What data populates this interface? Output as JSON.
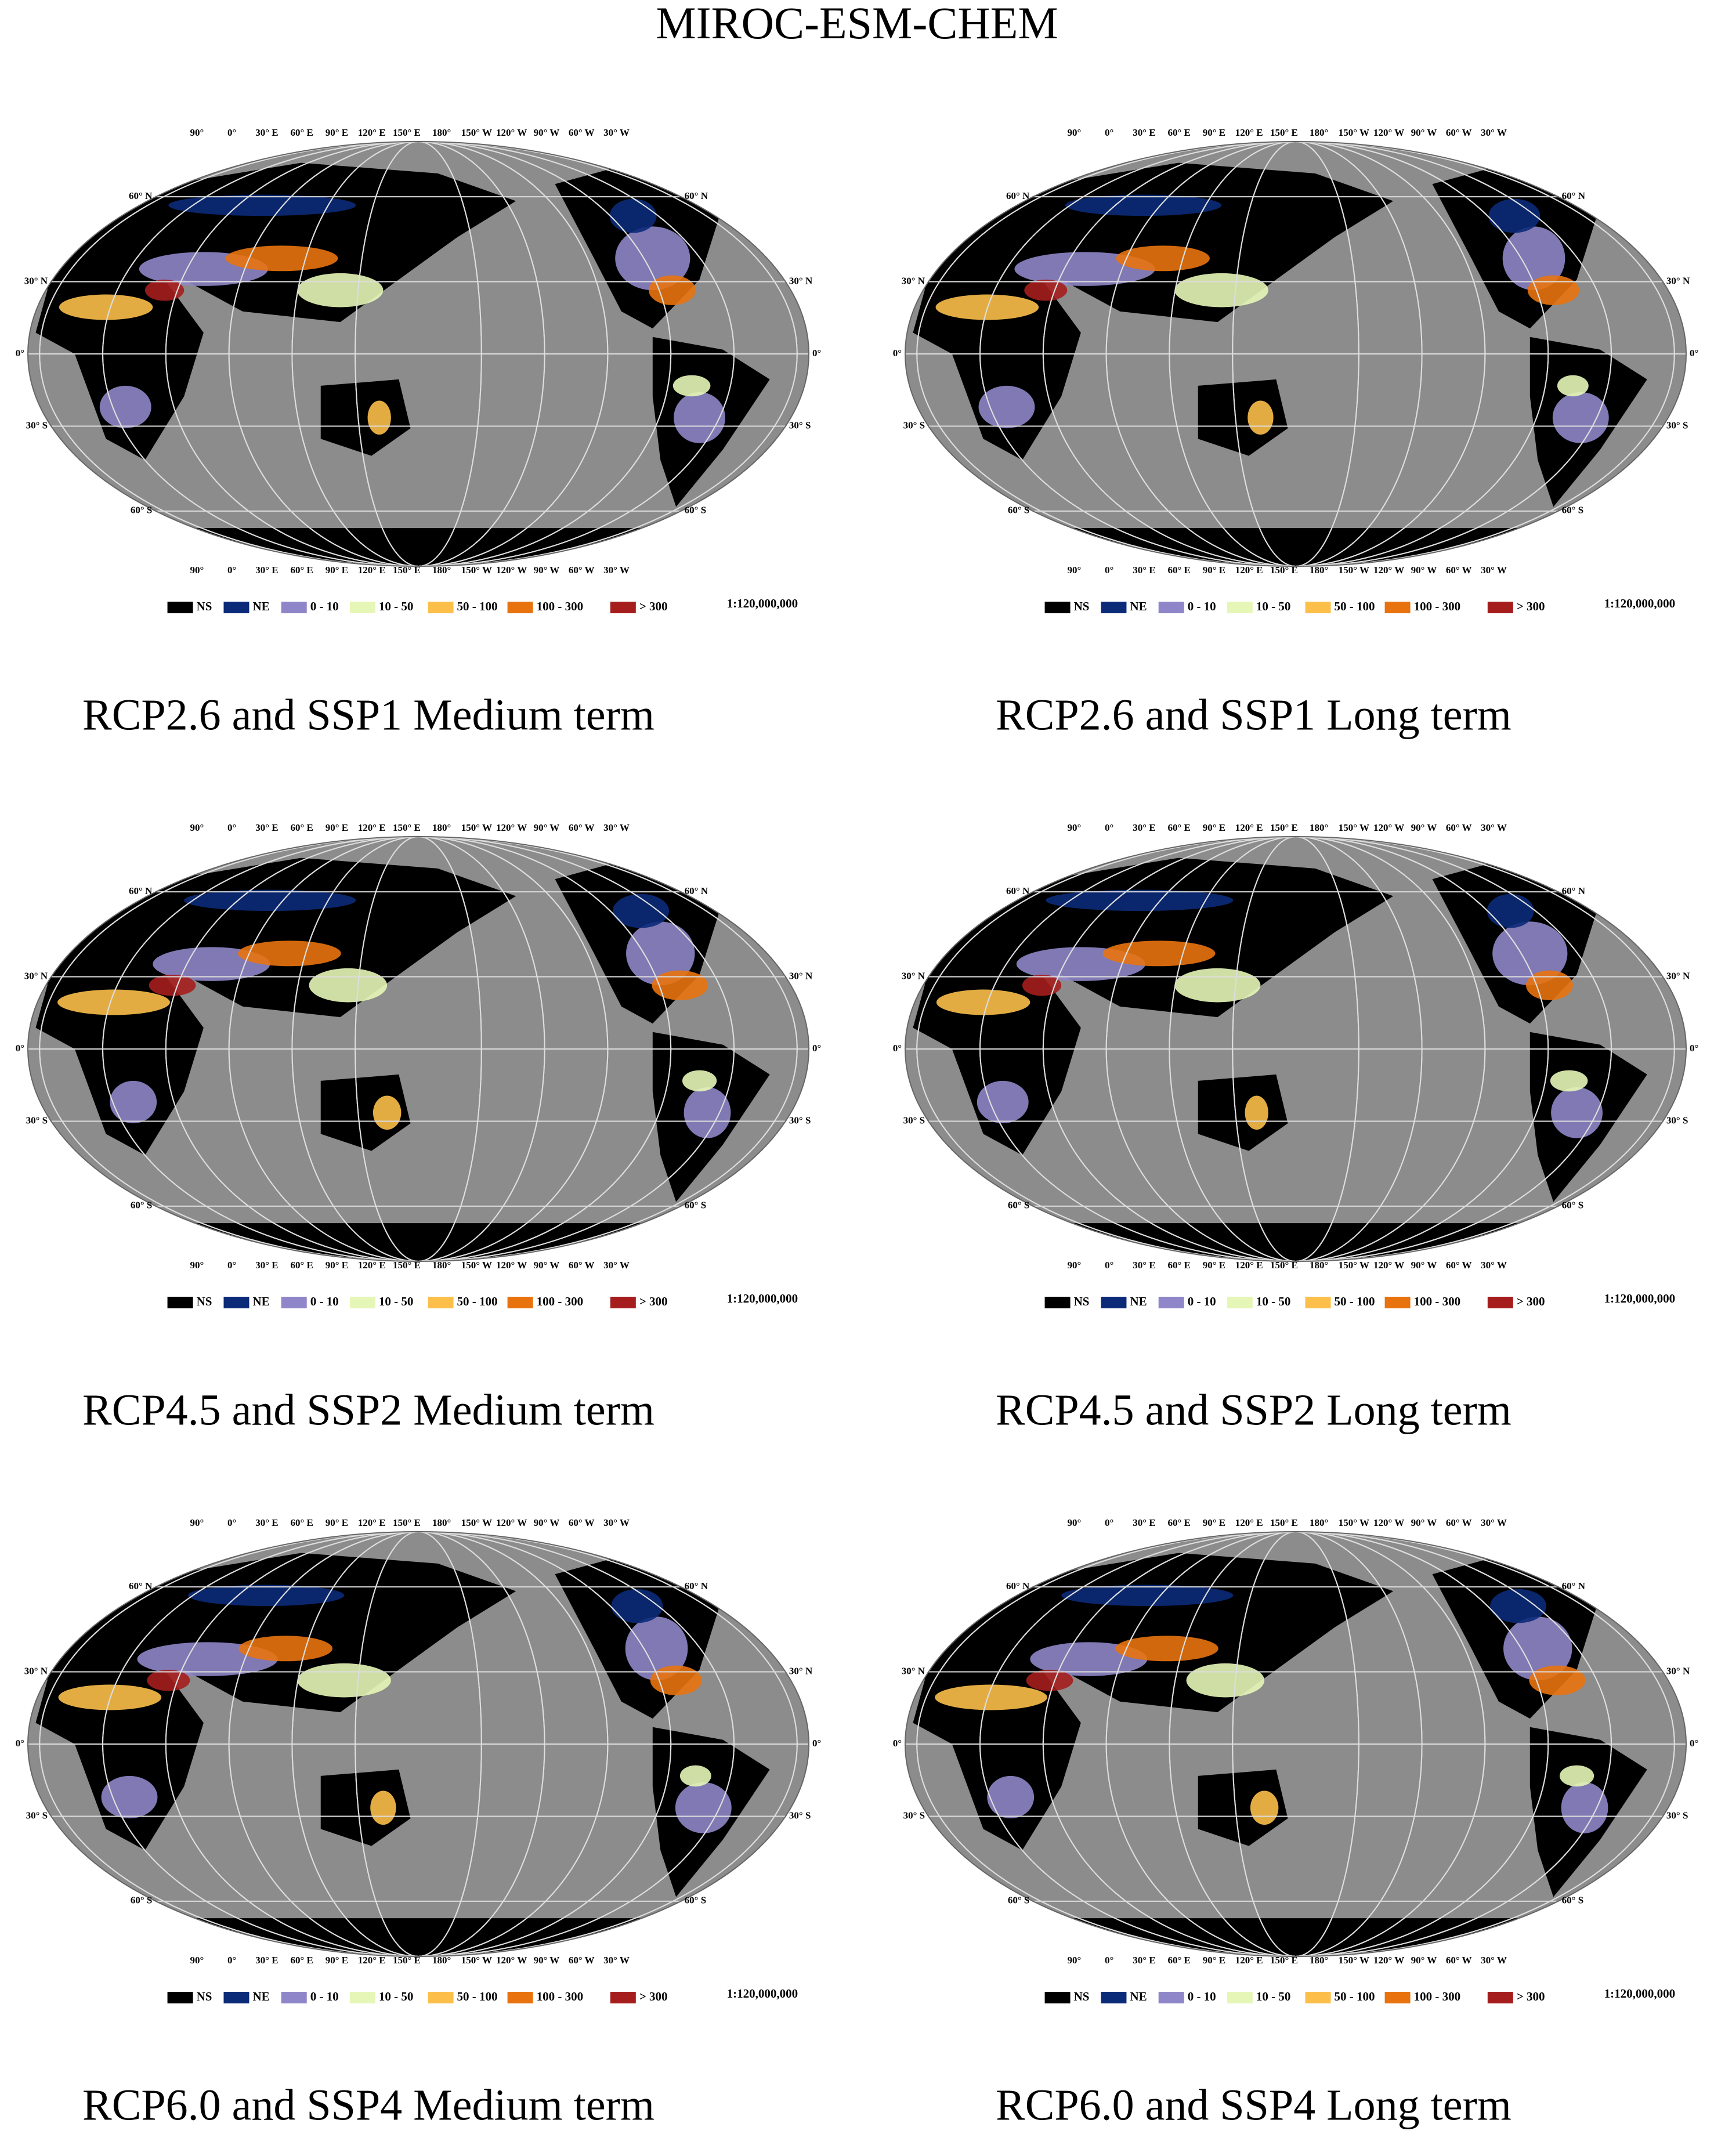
{
  "title": "MIROC-ESM-CHEM",
  "panels": [
    {
      "caption": "RCP2.6 and SSP1 Medium term"
    },
    {
      "caption": "RCP2.6 and SSP1 Long term"
    },
    {
      "caption": "RCP4.5 and SSP2 Medium term"
    },
    {
      "caption": "RCP4.5 and SSP2 Long term"
    },
    {
      "caption": "RCP6.0 and SSP4 Medium term"
    },
    {
      "caption": "RCP6.0 and SSP4 Long term"
    }
  ],
  "legend": {
    "items": [
      {
        "label": "NS",
        "color": "#000000"
      },
      {
        "label": "NE",
        "color": "#0b2a78"
      },
      {
        "label": "0 - 10",
        "color": "#8e86c8"
      },
      {
        "label": "10 - 50",
        "color": "#e6f6b6"
      },
      {
        "label": "50 - 100",
        "color": "#fbbf4a"
      },
      {
        "label": "100 - 300",
        "color": "#e8730e"
      },
      {
        "label": "> 300",
        "color": "#a51d1d"
      }
    ]
  },
  "scale": "1:120,000,000",
  "graticule": {
    "longitudes": [
      "90°",
      "0°",
      "30° E",
      "60° E",
      "90° E",
      "120° E",
      "150° E",
      "180°",
      "150° W",
      "120° W",
      "90° W",
      "60° W",
      "30° W"
    ],
    "latitudes": [
      "60° N",
      "30° N",
      "0°",
      "30° S",
      "60° S"
    ]
  }
}
